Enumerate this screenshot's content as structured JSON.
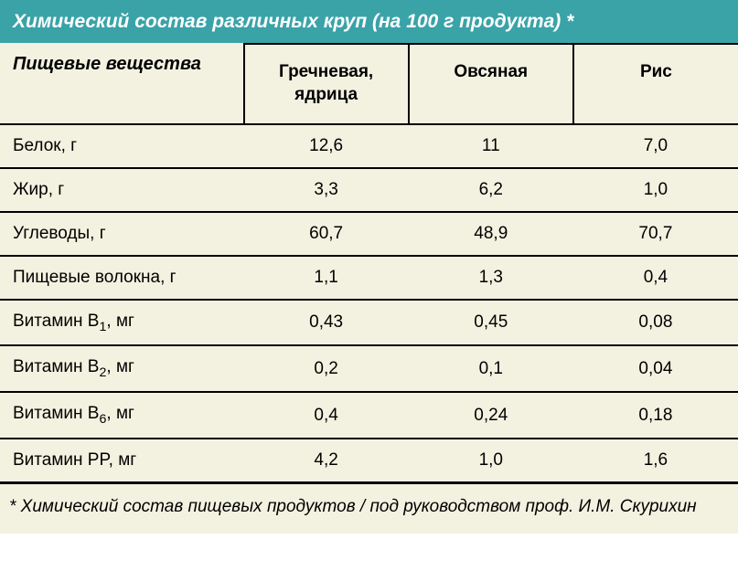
{
  "title": "Химический состав различных круп (на 100 г продукта) *",
  "row_header_label": "Пищевые вещества",
  "columns": [
    "Гречневая, ядрица",
    "Овсяная",
    "Рис"
  ],
  "rows": [
    {
      "label": "Белок, г",
      "values": [
        "12,6",
        "11",
        "7,0"
      ]
    },
    {
      "label": "Жир, г",
      "values": [
        "3,3",
        "6,2",
        "1,0"
      ]
    },
    {
      "label": "Углеводы, г",
      "values": [
        "60,7",
        "48,9",
        "70,7"
      ]
    },
    {
      "label": "Пищевые волокна, г",
      "values": [
        "1,1",
        "1,3",
        "0,4"
      ]
    },
    {
      "label_html": "Витамин B<sub>1</sub>, мг",
      "values": [
        "0,43",
        "0,45",
        "0,08"
      ]
    },
    {
      "label_html": "Витамин B<sub>2</sub>, мг",
      "values": [
        "0,2",
        "0,1",
        "0,04"
      ]
    },
    {
      "label_html": "Витамин B<sub>6</sub>, мг",
      "values": [
        "0,4",
        "0,24",
        "0,18"
      ]
    },
    {
      "label": "Витамин PP, мг",
      "values": [
        "4,2",
        "1,0",
        "1,6"
      ]
    }
  ],
  "footnote": "* Химический состав пищевых продуктов / под руководством проф. И.М. Скурихин",
  "styling": {
    "title_bg": "#3aa3a8",
    "title_color": "#ffffff",
    "table_bg": "#f3f2e1",
    "border_color": "#000000",
    "title_fontsize": 21,
    "header_fontsize": 20,
    "col_header_fontsize": 19,
    "cell_fontsize": 19,
    "footnote_fontsize": 19,
    "column_widths_pct": [
      33,
      22.3,
      22.3,
      22.3
    ]
  }
}
